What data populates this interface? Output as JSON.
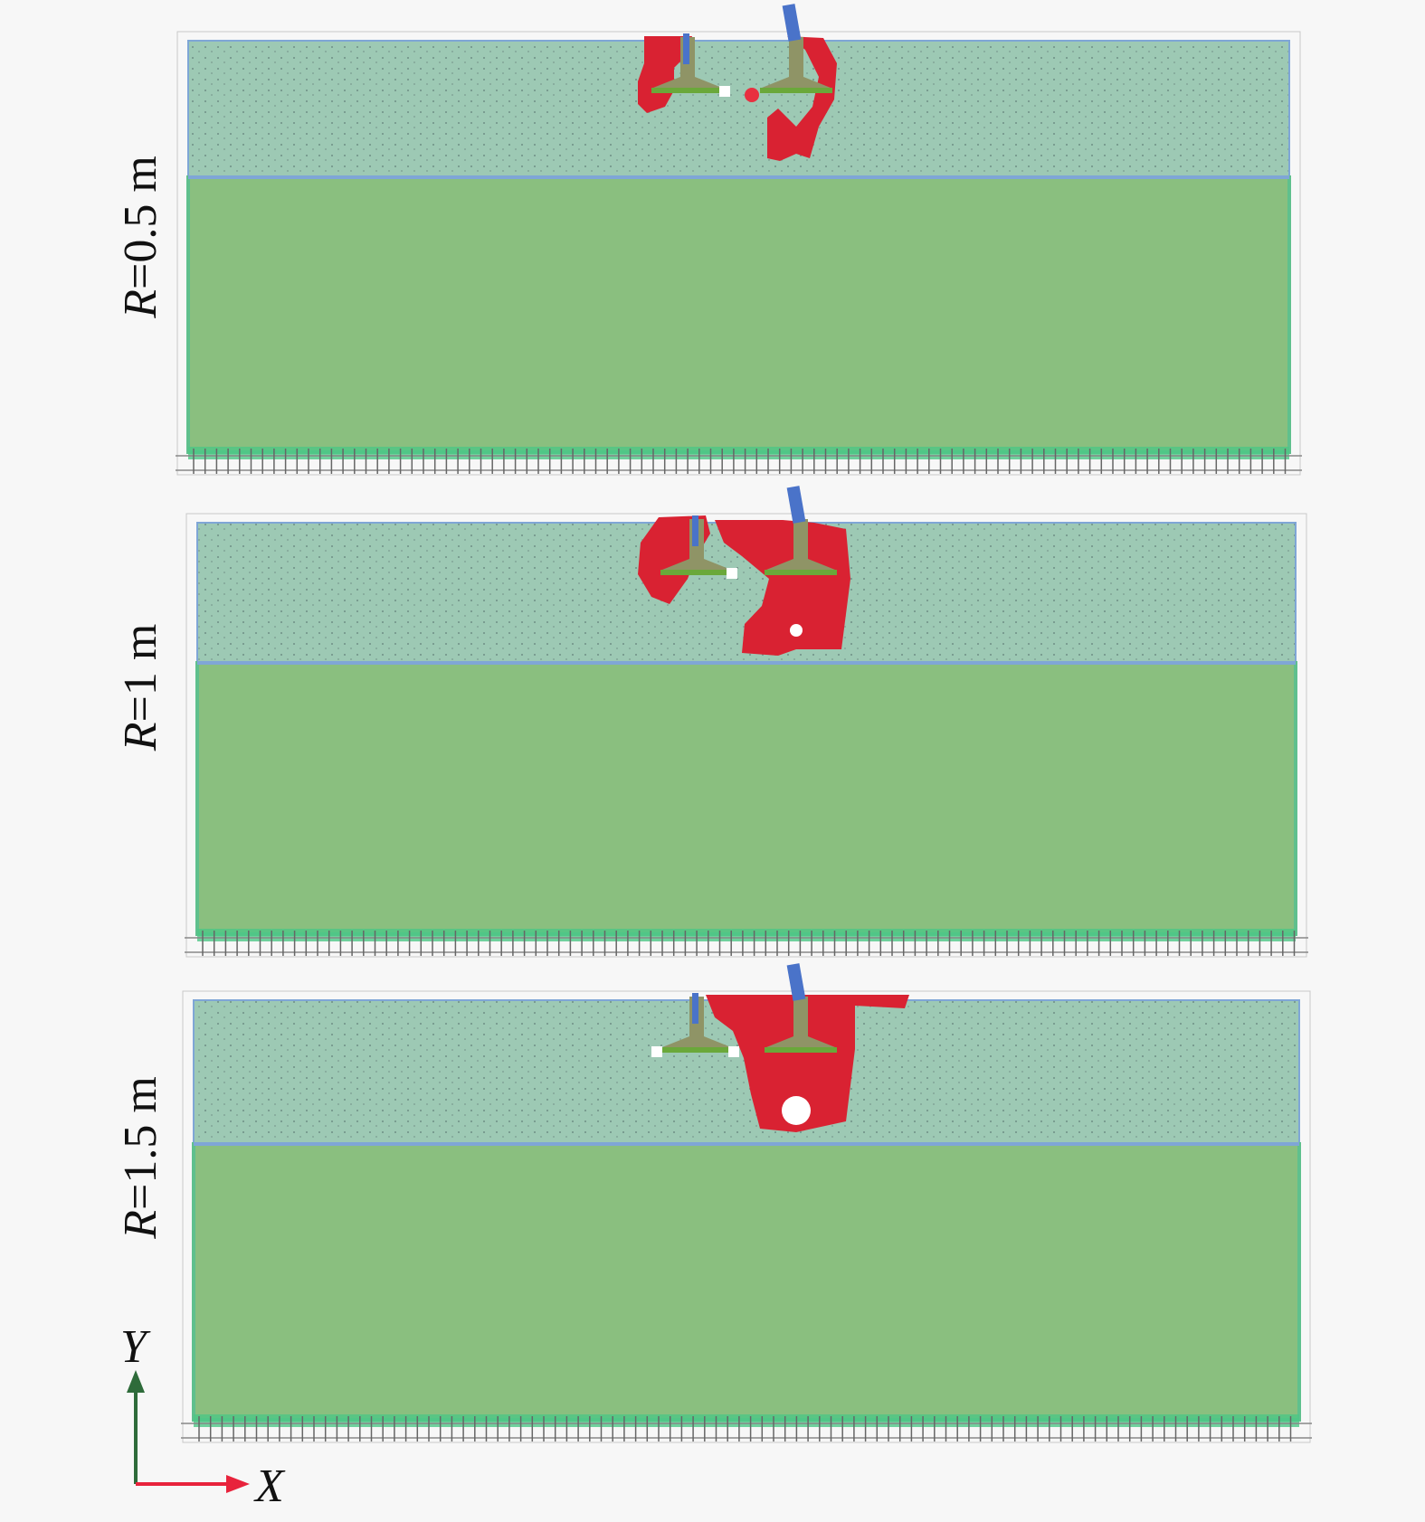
{
  "panels": [
    {
      "label_var": "R",
      "label_rest": "=0.5 m"
    },
    {
      "label_var": "R",
      "label_rest": "=1 m"
    },
    {
      "label_var": "R",
      "label_rest": "=1.5 m"
    }
  ],
  "axes": {
    "x_label": "X",
    "y_label": "Y"
  },
  "colors": {
    "upper_layer": "#9dc9b4",
    "lower_layer": "#8abf7f",
    "interface": "#7fa6d6",
    "plastic_zone": "#d92232",
    "footing": "#8f9466",
    "load": "#4a73c9",
    "x_axis": "#e8233c",
    "y_axis": "#2e6b3a"
  }
}
